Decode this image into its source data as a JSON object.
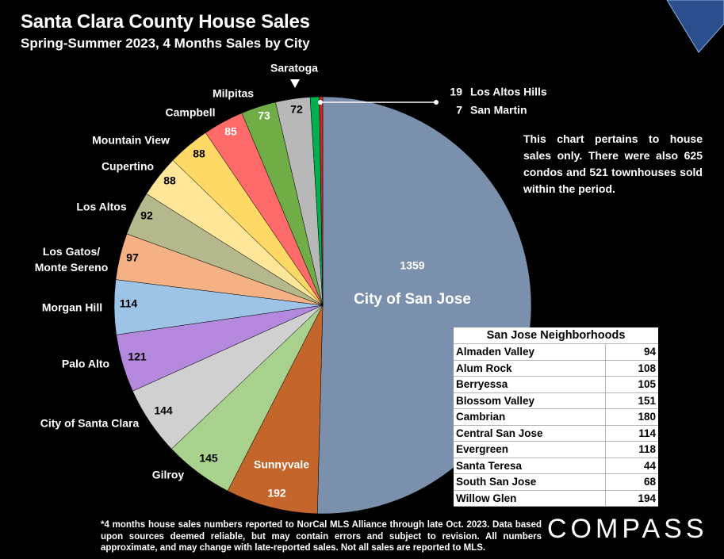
{
  "title": "Santa Clara County House Sales",
  "subtitle": "Spring-Summer 2023, 4 Months Sales by City",
  "note": "This chart pertains to house sales only. There were also 625 condos and 521 townhouses sold within the period.",
  "footnote": "*4 months house sales numbers reported to NorCal MLS Alliance through late Oct. 2023. Data based upon sources deemed reliable, but may contain errors and subject to revision. All numbers approximate, and may change with late-reported sales. Not all sales are reported to MLS.",
  "logo": "COMPASS",
  "chart_data": {
    "type": "pie",
    "title": "Santa Clara County House Sales",
    "subtitle": "Spring-Summer 2023, 4 Months Sales by City",
    "slices": [
      {
        "label": "City of San Jose",
        "value": 1359,
        "color": "#7a90ad"
      },
      {
        "label": "Sunnyvale",
        "value": 192,
        "color": "#c4652c"
      },
      {
        "label": "Gilroy",
        "value": 145,
        "color": "#a9d18e"
      },
      {
        "label": "City of Santa Clara",
        "value": 144,
        "color": "#d0d0d0"
      },
      {
        "label": "Palo Alto",
        "value": 121,
        "color": "#b488dd"
      },
      {
        "label": "Morgan Hill",
        "value": 114,
        "color": "#9dc3e6"
      },
      {
        "label": "Los Gatos/ Monte Sereno",
        "value": 97,
        "color": "#f4b183"
      },
      {
        "label": "Los Altos",
        "value": 92,
        "color": "#b5b88c"
      },
      {
        "label": "Cupertino",
        "value": 88,
        "color": "#ffe699"
      },
      {
        "label": "Mountain View",
        "value": 88,
        "color": "#ffd966"
      },
      {
        "label": "Campbell",
        "value": 85,
        "color": "#ff6b6b"
      },
      {
        "label": "Milpitas",
        "value": 73,
        "color": "#70ad47"
      },
      {
        "label": "Saratoga",
        "value": 72,
        "color": "#b8b8b8"
      },
      {
        "label": "Los Altos Hills",
        "value": 19,
        "color": "#00b050"
      },
      {
        "label": "San Martin",
        "value": 7,
        "color": "#e02020"
      }
    ]
  },
  "sj_table": {
    "header": "San Jose Neighborhoods",
    "rows": [
      {
        "name": "Almaden Valley",
        "value": "94"
      },
      {
        "name": "Alum Rock",
        "value": "108"
      },
      {
        "name": "Berryessa",
        "value": "105"
      },
      {
        "name": "Blossom Valley",
        "value": "151"
      },
      {
        "name": "Cambrian",
        "value": "180"
      },
      {
        "name": "Central San Jose",
        "value": "114"
      },
      {
        "name": "Evergreen",
        "value": "118"
      },
      {
        "name": "Santa Teresa",
        "value": "44"
      },
      {
        "name": "South San Jose",
        "value": "68"
      },
      {
        "name": "Willow Glen",
        "value": "194"
      }
    ]
  }
}
